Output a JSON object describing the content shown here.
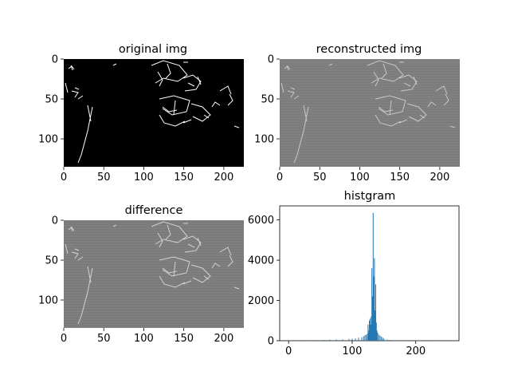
{
  "chart_data": [
    {
      "type": "image",
      "title": "original img",
      "style": "binary edge map, white edges on black",
      "background": "#000000",
      "foreground": "#ffffff",
      "xlim": [
        0,
        225
      ],
      "ylim": [
        135,
        0
      ],
      "xticks": [
        0,
        50,
        100,
        150,
        200
      ],
      "yticks": [
        0,
        50,
        100
      ],
      "grid": false
    },
    {
      "type": "image",
      "title": "reconstructed img",
      "style": "grey background with lighter edge structures",
      "background": "#7a7a7a",
      "foreground": "#c8c8c8",
      "xlim": [
        0,
        225
      ],
      "ylim": [
        135,
        0
      ],
      "xticks": [
        0,
        50,
        100,
        150,
        200
      ],
      "yticks": [
        0,
        50,
        100
      ],
      "grid": false
    },
    {
      "type": "image",
      "title": "difference",
      "style": "grey background with light edge structures",
      "background": "#787878",
      "foreground": "#d2d2d2",
      "xlim": [
        0,
        225
      ],
      "ylim": [
        135,
        0
      ],
      "xticks": [
        0,
        50,
        100,
        150,
        200
      ],
      "yticks": [
        0,
        50,
        100
      ],
      "grid": false
    },
    {
      "type": "bar",
      "title": "histgram",
      "color": "#1f77b4",
      "xlim": [
        -14,
        268
      ],
      "ylim": [
        0,
        6700
      ],
      "xticks": [
        0,
        100,
        200
      ],
      "yticks": [
        0,
        2000,
        4000,
        6000
      ],
      "grid": false,
      "x": [
        10,
        30,
        45,
        55,
        65,
        75,
        85,
        95,
        100,
        105,
        110,
        115,
        118,
        120,
        122,
        124,
        125,
        126,
        127,
        128,
        129,
        130,
        131,
        132,
        133,
        134,
        135,
        136,
        137,
        138,
        139,
        140,
        142,
        144,
        146,
        148,
        150,
        155,
        160,
        170,
        180,
        200,
        230
      ],
      "values": [
        10,
        20,
        30,
        40,
        50,
        60,
        70,
        90,
        100,
        110,
        150,
        180,
        220,
        280,
        300,
        350,
        800,
        500,
        1000,
        1100,
        800,
        1200,
        3600,
        2200,
        6350,
        3200,
        4100,
        1500,
        2800,
        900,
        500,
        400,
        300,
        250,
        200,
        150,
        100,
        60,
        40,
        20,
        15,
        10,
        5
      ]
    }
  ]
}
